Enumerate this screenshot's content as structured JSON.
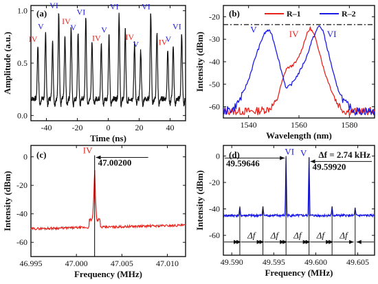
{
  "colors": {
    "black": "#111111",
    "red": "#e8231c",
    "blue": "#1a1ae6"
  },
  "chart_data": [
    {
      "id": "a",
      "type": "line",
      "panel_label": "(a)",
      "xlabel": "Time (ns)",
      "ylabel": "Amplitude (a.u.)",
      "xlim": [
        -50,
        50
      ],
      "ylim": [
        -0.05,
        1.05
      ],
      "xticks": [
        -40,
        -20,
        0,
        20,
        40
      ],
      "xtick_labels": [
        "-40",
        "-20",
        "0",
        "20",
        "40"
      ],
      "yticks": [
        0.0,
        0.5,
        1.0
      ],
      "ytick_labels": [
        "0.0",
        "0.5",
        "1.0"
      ],
      "baseline": 0.16,
      "pulses": [
        {
          "x": -45.5,
          "y": 0.67,
          "mark": "IV",
          "color": "red"
        },
        {
          "x": -40.5,
          "y": 0.79,
          "mark": "V",
          "color": "blue"
        },
        {
          "x": -36.0,
          "y": 0.7
        },
        {
          "x": -32.0,
          "y": 0.99,
          "mark": "VI",
          "color": "blue"
        },
        {
          "x": -28.0,
          "y": 0.75
        },
        {
          "x": -24.0,
          "y": 0.84,
          "mark": "IV",
          "color": "red"
        },
        {
          "x": -19.5,
          "y": 0.78,
          "mark": "V",
          "color": "blue"
        },
        {
          "x": -14.5,
          "y": 0.93,
          "mark": "VI",
          "color": "blue"
        },
        {
          "x": -10.5,
          "y": 0.72
        },
        {
          "x": -4.5,
          "y": 0.68,
          "mark": "IV",
          "color": "red"
        },
        {
          "x": 0.5,
          "y": 0.76,
          "mark": "V",
          "color": "blue"
        },
        {
          "x": 7.0,
          "y": 0.98,
          "mark": "VI",
          "color": "blue"
        },
        {
          "x": 11.0,
          "y": 0.82
        },
        {
          "x": 17.0,
          "y": 0.69,
          "mark": "IV",
          "color": "red"
        },
        {
          "x": 21.0,
          "y": 0.62,
          "mark": "V",
          "color": "blue"
        },
        {
          "x": 27.5,
          "y": 0.98,
          "mark": "VI",
          "color": "blue"
        },
        {
          "x": 31.5,
          "y": 0.79
        },
        {
          "x": 38.5,
          "y": 0.64,
          "mark": "IV",
          "color": "red"
        },
        {
          "x": 42.0,
          "y": 0.67,
          "mark": "V",
          "color": "blue"
        },
        {
          "x": 47.5,
          "y": 0.79,
          "mark": "VI",
          "color": "blue"
        }
      ]
    },
    {
      "id": "b",
      "type": "line",
      "panel_label": "(b)",
      "xlabel": "Wavelength (nm)",
      "ylabel": "Intensity (dBm)",
      "xlim": [
        1530,
        1590
      ],
      "ylim": [
        -65,
        -15
      ],
      "xticks": [
        1540,
        1560,
        1580
      ],
      "xtick_labels": [
        "1540",
        "1560",
        "1580"
      ],
      "yticks": [
        -20,
        -30,
        -40,
        -50,
        -60
      ],
      "ytick_labels": [
        "-20",
        "-30",
        "-40",
        "-50",
        "-60"
      ],
      "reference_line_y": -23.5,
      "legend_position": "top-right",
      "series": [
        {
          "name": "R–1",
          "color": "red",
          "peaks": [
            "IV"
          ],
          "points": [
            [
              1530,
              -62
            ],
            [
              1543,
              -62
            ],
            [
              1548,
              -61
            ],
            [
              1551,
              -58
            ],
            [
              1553,
              -50
            ],
            [
              1555,
              -43
            ],
            [
              1557,
              -42
            ],
            [
              1559,
              -40
            ],
            [
              1561,
              -35
            ],
            [
              1563,
              -28
            ],
            [
              1564.5,
              -25
            ],
            [
              1566,
              -28
            ],
            [
              1568,
              -35
            ],
            [
              1570,
              -44
            ],
            [
              1573,
              -53
            ],
            [
              1575,
              -58
            ],
            [
              1578,
              -62
            ],
            [
              1590,
              -62
            ]
          ]
        },
        {
          "name": "R–2",
          "color": "blue",
          "peaks": [
            "V",
            "VI"
          ],
          "points": [
            [
              1530,
              -62
            ],
            [
              1534,
              -61
            ],
            [
              1537,
              -56
            ],
            [
              1540,
              -48
            ],
            [
              1543,
              -37
            ],
            [
              1546,
              -28
            ],
            [
              1547.5,
              -26
            ],
            [
              1549,
              -27
            ],
            [
              1551,
              -35
            ],
            [
              1553,
              -44
            ],
            [
              1555,
              -52
            ],
            [
              1557,
              -50
            ],
            [
              1560,
              -45
            ],
            [
              1563,
              -38
            ],
            [
              1565,
              -31
            ],
            [
              1567,
              -26
            ],
            [
              1568,
              -24
            ],
            [
              1569.5,
              -26
            ],
            [
              1571,
              -33
            ],
            [
              1573,
              -42
            ],
            [
              1575,
              -51
            ],
            [
              1578,
              -58
            ],
            [
              1582,
              -62
            ],
            [
              1590,
              -62
            ]
          ]
        }
      ],
      "peak_marks": [
        {
          "text": "V",
          "x": 1542,
          "y": -27,
          "color": "blue"
        },
        {
          "text": "IV",
          "x": 1558,
          "y": -29,
          "color": "red"
        },
        {
          "text": "VI",
          "x": 1573,
          "y": -29,
          "color": "blue"
        }
      ]
    },
    {
      "id": "c",
      "type": "line",
      "panel_label": "(c)",
      "xlabel": "Frequency (MHz)",
      "ylabel": "Intensity (dBm)",
      "xlim": [
        46.995,
        47.012
      ],
      "ylim": [
        -70,
        8
      ],
      "xticks": [
        46.995,
        47.0,
        47.005,
        47.01
      ],
      "xtick_labels": [
        "46.995",
        "47.000",
        "47.005",
        "47.010"
      ],
      "yticks": [
        0,
        -20,
        -40,
        -60
      ],
      "ytick_labels": [
        "0",
        "-20",
        "-40",
        "-60"
      ],
      "color": "red",
      "noise_start": -50.5,
      "noise_end": -48,
      "peak": {
        "x": 47.002,
        "y": 1,
        "label": "IV",
        "annotation": "47.00200"
      }
    },
    {
      "id": "d",
      "type": "line",
      "panel_label": "(d)",
      "xlabel": "Frequency (MHz)",
      "ylabel": "Intensity (dBm)",
      "xlim": [
        49.589,
        49.607
      ],
      "ylim": [
        -75,
        8
      ],
      "xticks": [
        49.59,
        49.595,
        49.6,
        49.605
      ],
      "xtick_labels": [
        "49.590",
        "49.595",
        "49.600",
        "49.605"
      ],
      "yticks": [
        0,
        -20,
        -40,
        -60
      ],
      "ytick_labels": [
        "0",
        "-20",
        "-40",
        "-60"
      ],
      "color": "blue",
      "noise_level": -45,
      "peaks": [
        {
          "x": 49.59096,
          "y": -38
        },
        {
          "x": 49.59371,
          "y": -38
        },
        {
          "x": 49.59646,
          "y": 0,
          "label": "VI",
          "annotation": "49.59646"
        },
        {
          "x": 49.5992,
          "y": -1,
          "label": "V",
          "annotation": "49.59920"
        },
        {
          "x": 49.60194,
          "y": -38
        },
        {
          "x": 49.60469,
          "y": -39
        }
      ],
      "delta_text": "Δf = 2.74 kHz",
      "delta_label": "Δf",
      "delta_arrow_y": -65
    }
  ]
}
